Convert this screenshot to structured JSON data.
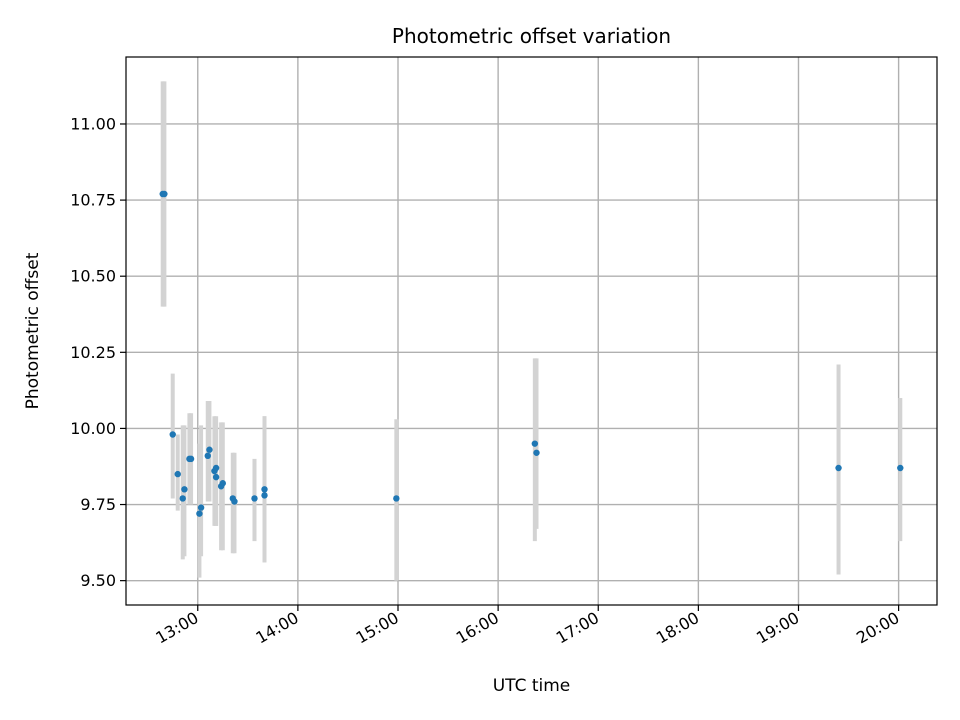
{
  "chart_data": {
    "type": "scatter",
    "title": "Photometric offset variation",
    "xlabel": "UTC time",
    "ylabel": "Photometric offset",
    "xlim": [
      "12:17",
      "20:23"
    ],
    "ylim": [
      9.42,
      11.22
    ],
    "grid": true,
    "xticks": [
      "13:00",
      "14:00",
      "15:00",
      "16:00",
      "17:00",
      "18:00",
      "19:00",
      "20:00"
    ],
    "yticks": [
      "9.50",
      "9.75",
      "10.00",
      "10.25",
      "10.50",
      "10.75",
      "11.00"
    ],
    "colors": {
      "point": "#1f77b4",
      "errorbar": "#d3d3d3",
      "grid": "#b0b0b0"
    },
    "points": [
      {
        "t": "12:39",
        "y": 10.77,
        "low": 10.4,
        "high": 11.14
      },
      {
        "t": "12:40",
        "y": 10.77,
        "low": 10.4,
        "high": 11.14
      },
      {
        "t": "12:45",
        "y": 9.98,
        "low": 9.77,
        "high": 10.18
      },
      {
        "t": "12:48",
        "y": 9.85,
        "low": 9.73,
        "high": 9.98
      },
      {
        "t": "12:51",
        "y": 9.77,
        "low": 9.57,
        "high": 10.01
      },
      {
        "t": "12:52",
        "y": 9.8,
        "low": 9.58,
        "high": 10.01
      },
      {
        "t": "12:55",
        "y": 9.9,
        "low": 9.75,
        "high": 10.05
      },
      {
        "t": "12:56",
        "y": 9.9,
        "low": 9.75,
        "high": 10.05
      },
      {
        "t": "13:01",
        "y": 9.72,
        "low": 9.51,
        "high": 9.95
      },
      {
        "t": "13:02",
        "y": 9.74,
        "low": 9.58,
        "high": 10.01
      },
      {
        "t": "13:06",
        "y": 9.91,
        "low": 9.76,
        "high": 10.09
      },
      {
        "t": "13:07",
        "y": 9.93,
        "low": 9.76,
        "high": 10.09
      },
      {
        "t": "13:10",
        "y": 9.86,
        "low": 9.68,
        "high": 10.04
      },
      {
        "t": "13:11",
        "y": 9.87,
        "low": 9.68,
        "high": 10.04
      },
      {
        "t": "13:11",
        "y": 9.84,
        "low": 9.68,
        "high": 10.02
      },
      {
        "t": "13:14",
        "y": 9.81,
        "low": 9.6,
        "high": 10.02
      },
      {
        "t": "13:15",
        "y": 9.82,
        "low": 9.6,
        "high": 10.02
      },
      {
        "t": "13:21",
        "y": 9.77,
        "low": 9.59,
        "high": 9.92
      },
      {
        "t": "13:22",
        "y": 9.76,
        "low": 9.59,
        "high": 9.92
      },
      {
        "t": "13:34",
        "y": 9.77,
        "low": 9.63,
        "high": 9.9
      },
      {
        "t": "13:40",
        "y": 9.78,
        "low": 9.56,
        "high": 10.04
      },
      {
        "t": "13:40",
        "y": 9.8,
        "low": 9.56,
        "high": 10.04
      },
      {
        "t": "14:59",
        "y": 9.77,
        "low": 9.5,
        "high": 10.03
      },
      {
        "t": "16:22",
        "y": 9.95,
        "low": 9.63,
        "high": 10.23
      },
      {
        "t": "16:23",
        "y": 9.92,
        "low": 9.67,
        "high": 10.23
      },
      {
        "t": "19:24",
        "y": 9.87,
        "low": 9.52,
        "high": 10.21
      },
      {
        "t": "20:01",
        "y": 9.87,
        "low": 9.63,
        "high": 10.1
      }
    ]
  }
}
